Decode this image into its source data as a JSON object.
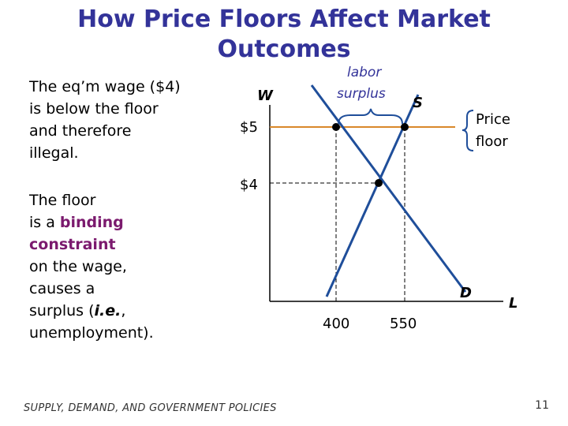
{
  "title": {
    "line1": "How Price Floors Affect Market",
    "line2": "Outcomes"
  },
  "text": {
    "para1": [
      "The eq’m wage ($4)",
      "is below the floor",
      "and therefore",
      "illegal."
    ],
    "para2": {
      "line1": "The floor",
      "line2_prefix": "is a ",
      "line2_highlight": "binding",
      "line3_highlight": "constraint",
      "line4": "on the wage,",
      "line5": "causes a",
      "line6_prefix": "surplus (",
      "line6_italic": "i.e.",
      "line6_suffix": ",",
      "line7": "unemployment)."
    }
  },
  "diagram": {
    "axis_y_label": "W",
    "axis_x_label": "L",
    "supply_label": "S",
    "demand_label": "D",
    "floor_price_label": "$5",
    "eq_price_label": "$4",
    "qty_demanded_label": "400",
    "qty_supplied_label": "550",
    "surplus_label_line1": "labor",
    "surplus_label_line2": "surplus",
    "floor_label_line1": "Price",
    "floor_label_line2": "floor",
    "colors": {
      "curves": "#1f4e9a",
      "floor_line": "#d9882a",
      "surplus_text": "#333399",
      "brace": "#1f4e9a"
    }
  },
  "footer": {
    "text": "SUPPLY, DEMAND, AND GOVERNMENT POLICIES",
    "slide_number": "11"
  }
}
